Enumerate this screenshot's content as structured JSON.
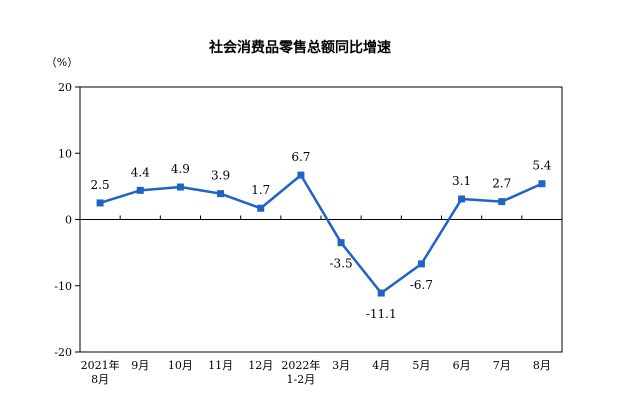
{
  "chart_data": {
    "type": "line",
    "title": "社会消费品零售总额同比增速",
    "unit_label": "（%）",
    "xlabel": "",
    "ylabel": "",
    "ylim": [
      -20,
      20
    ],
    "yticks": [
      20,
      10,
      0,
      -10,
      -20
    ],
    "grid": false,
    "legend": "none",
    "categories": [
      [
        "2021年",
        "8月"
      ],
      [
        "9月"
      ],
      [
        "10月"
      ],
      [
        "11月"
      ],
      [
        "12月"
      ],
      [
        "2022年",
        "1-2月"
      ],
      [
        "3月"
      ],
      [
        "4月"
      ],
      [
        "5月"
      ],
      [
        "6月"
      ],
      [
        "7月"
      ],
      [
        "8月"
      ]
    ],
    "series": [
      {
        "values": [
          2.5,
          4.4,
          4.9,
          3.9,
          1.7,
          6.7,
          -3.5,
          -11.1,
          -6.7,
          3.1,
          2.7,
          5.4
        ],
        "color": "#1f63c6",
        "marker": "square"
      }
    ],
    "label_position": [
      "above",
      "above",
      "above",
      "above",
      "above",
      "above",
      "below",
      "below",
      "below",
      "above",
      "above",
      "above"
    ]
  }
}
